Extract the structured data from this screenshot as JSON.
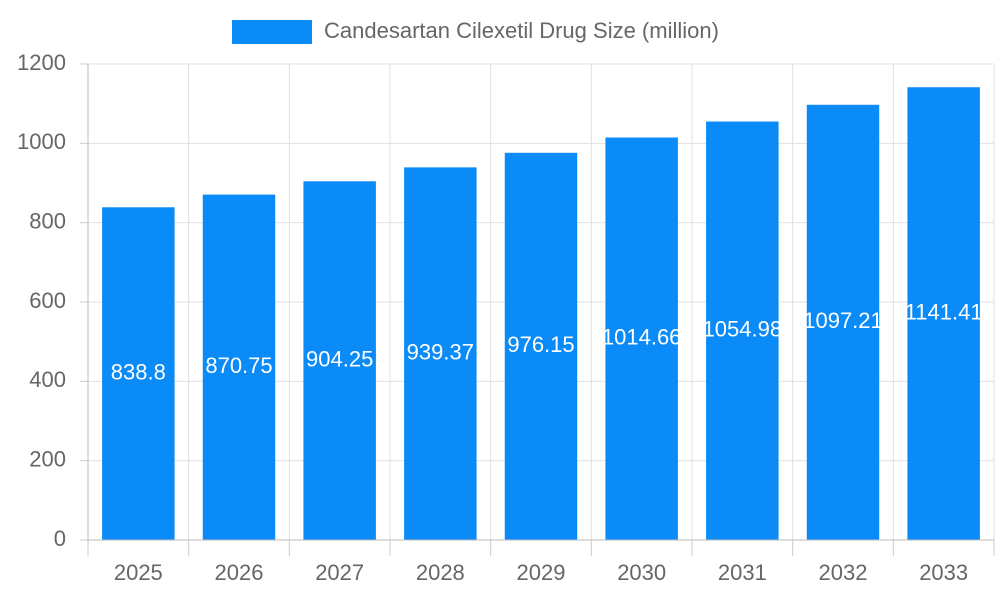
{
  "chart_data": {
    "type": "bar",
    "categories": [
      "2025",
      "2026",
      "2027",
      "2028",
      "2029",
      "2030",
      "2031",
      "2032",
      "2033"
    ],
    "series": [
      {
        "name": "Candesartan Cilexetil Drug Size (million)",
        "color": "#0b8bf7",
        "values": [
          838.8,
          870.75,
          904.25,
          939.37,
          976.15,
          1014.66,
          1054.98,
          1097.21,
          1141.41
        ]
      }
    ],
    "ylim": [
      0,
      1200
    ],
    "yticks": [
      0,
      200,
      400,
      600,
      800,
      1000,
      1200
    ],
    "grid": true,
    "legend": "top"
  }
}
